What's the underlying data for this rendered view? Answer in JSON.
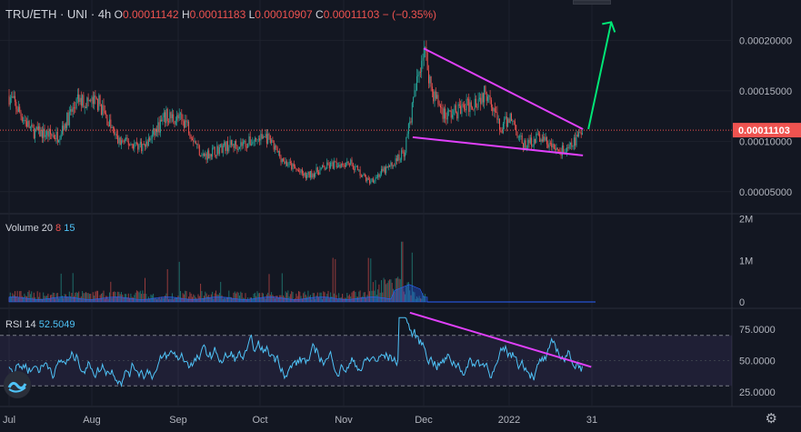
{
  "header": {
    "symbol": "TRU/ETH · UNI · 4h",
    "o_label": "O",
    "o_value": "0.00011142",
    "h_label": "H",
    "h_value": "0.00011183",
    "l_label": "L",
    "l_value": "0.00010907",
    "c_label": "C",
    "c_value": "0.00011103",
    "change": "− (−0.35%)"
  },
  "volume_legend": {
    "name": "Volume 20",
    "v1": "8",
    "v2": "15"
  },
  "rsi_legend": {
    "name": "RSI 14",
    "value": "52.5049"
  },
  "colors": {
    "background": "#131722",
    "up": "#26a69a",
    "down": "#ef5350",
    "trendline": "#e040fb",
    "arrow": "#00e676",
    "rsi_line": "#4fc3f7",
    "price_line": "#ef5350"
  },
  "icons": {
    "logo": "tradingview-logo-icon",
    "settings": "gear-icon"
  },
  "chart_data": [
    {
      "type": "candlestick",
      "pane": "price",
      "x_tick_labels": [
        "Jul",
        "Aug",
        "Sep",
        "Oct",
        "Nov",
        "Dec",
        "2022",
        "31"
      ],
      "y_tick_labels": [
        "0.00020000",
        "0.00015000",
        "0.00010000",
        "0.00005000"
      ],
      "y_ticks": [
        0.0002,
        0.00015,
        0.0001,
        5e-05
      ],
      "ylim": [
        3e-05,
        0.00024
      ],
      "current_price_label": "0.00011103",
      "current_price": 0.00011103,
      "series_close_points": [
        [
          "Jul 1",
          0.000145
        ],
        [
          "Jul 10",
          0.00011
        ],
        [
          "Jul 20",
          0.000105
        ],
        [
          "Jul 28",
          0.00014
        ],
        [
          "Aug 5",
          0.000138
        ],
        [
          "Aug 12",
          0.0001
        ],
        [
          "Aug 22",
          9.5e-05
        ],
        [
          "Aug 30",
          0.000125
        ],
        [
          "Sep 6",
          0.00012
        ],
        [
          "Sep 12",
          8.5e-05
        ],
        [
          "Sep 20",
          9.5e-05
        ],
        [
          "Sep 28",
          9.8e-05
        ],
        [
          "Oct 5",
          0.000105
        ],
        [
          "Oct 12",
          8e-05
        ],
        [
          "Oct 20",
          6.5e-05
        ],
        [
          "Oct 28",
          7.5e-05
        ],
        [
          "Nov 5",
          8e-05
        ],
        [
          "Nov 12",
          6e-05
        ],
        [
          "Nov 20",
          7.5e-05
        ],
        [
          "Nov 25",
          9e-05
        ],
        [
          "Nov 29",
          0.00015
        ],
        [
          "Dec 2",
          0.000195
        ],
        [
          "Dec 5",
          0.00015
        ],
        [
          "Dec 10",
          0.000125
        ],
        [
          "Dec 18",
          0.000135
        ],
        [
          "Dec 26",
          0.00015
        ],
        [
          "Dec 30",
          0.00011
        ],
        [
          "Jan 3",
          0.000125
        ],
        [
          "Jan 8",
          9.5e-05
        ],
        [
          "Jan 14",
          0.000105
        ],
        [
          "Jan 20",
          9.2e-05
        ],
        [
          "Jan 25",
          9e-05
        ],
        [
          "Jan 31",
          0.000111
        ]
      ],
      "annotations": {
        "upper_trendline": [
          [
            "Dec 2",
            0.000192
          ],
          [
            "Jan 31",
            0.000112
          ]
        ],
        "lower_trendline": [
          [
            "Nov 28",
            0.000104
          ],
          [
            "Jan 31",
            8.6e-05
          ]
        ],
        "projection_arrow": [
          [
            "Feb 2",
            0.000112
          ],
          [
            "Feb 10",
            0.000218
          ]
        ]
      }
    },
    {
      "type": "bar",
      "pane": "volume",
      "y_tick_labels": [
        "2M",
        "1M",
        "0"
      ],
      "y_ticks": [
        2000000,
        1000000,
        0
      ],
      "ylim": [
        0,
        2100000
      ]
    },
    {
      "type": "line",
      "pane": "rsi",
      "y_tick_labels": [
        "75.0000",
        "50.0000",
        "25.0000"
      ],
      "y_ticks": [
        75,
        50,
        25
      ],
      "ylim": [
        15,
        90
      ],
      "band": [
        30,
        70
      ],
      "annotations": {
        "trendline": [
          [
            "Nov 27",
            88
          ],
          [
            "Feb 3",
            45
          ]
        ]
      }
    }
  ]
}
